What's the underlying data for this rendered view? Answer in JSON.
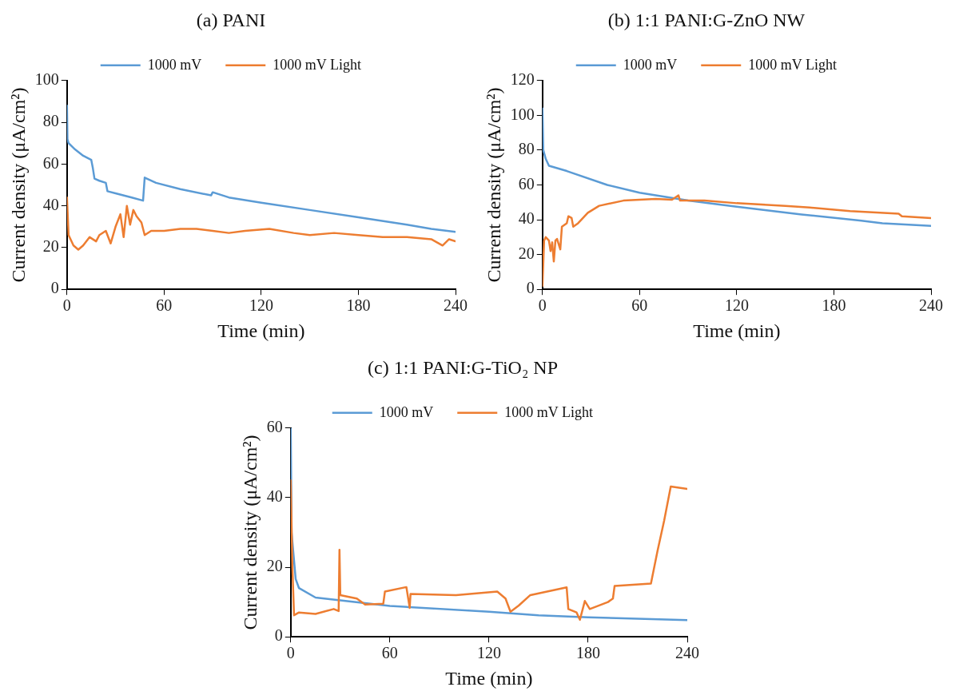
{
  "chart_data": [
    {
      "type": "line",
      "title": "(a) PANI",
      "xlabel": "Time (min)",
      "ylabel": "Current density (μA/cm²)",
      "xlim": [
        0,
        240
      ],
      "xticks": [
        0,
        60,
        120,
        180,
        240
      ],
      "ylim": [
        0,
        100
      ],
      "yticks": [
        0,
        20,
        40,
        60,
        80,
        100
      ],
      "grid": false,
      "legend": "top",
      "marker": "none",
      "line_style": "solid",
      "series": [
        {
          "name": "1000 mV",
          "color": "#5b9bd5",
          "x": [
            0,
            0.3,
            1,
            5,
            10,
            15,
            16,
            17,
            20,
            24,
            25,
            30,
            40,
            47,
            48,
            55,
            70,
            89,
            90,
            100,
            120,
            150,
            180,
            210,
            225,
            240
          ],
          "values": [
            88,
            72,
            70,
            67,
            64,
            62,
            58,
            53,
            52,
            51,
            47,
            46,
            44,
            42.5,
            53.5,
            51,
            48,
            45,
            46.5,
            44,
            41.5,
            38,
            34.5,
            31,
            29,
            27.5
          ]
        },
        {
          "name": "1000 mV Light",
          "color": "#ed7d31",
          "x": [
            0,
            1,
            4,
            7,
            10,
            14,
            18,
            20,
            24,
            27,
            30,
            33,
            35,
            37,
            39,
            41,
            43,
            46,
            48,
            52,
            60,
            70,
            80,
            90,
            100,
            110,
            125,
            140,
            150,
            165,
            180,
            195,
            210,
            225,
            232,
            236,
            240
          ],
          "values": [
            44,
            26,
            21,
            19,
            21,
            25,
            23,
            26,
            28,
            22,
            30,
            36,
            25,
            40,
            31,
            38,
            35,
            32,
            26,
            28,
            28,
            29,
            29,
            28,
            27,
            28,
            29,
            27,
            26,
            27,
            26,
            25,
            25,
            24,
            21,
            24,
            23
          ]
        }
      ]
    },
    {
      "type": "line",
      "title": "(b) 1:1 PANI:G-ZnO NW",
      "xlabel": "Time (min)",
      "ylabel": "Current density (μA/cm²)",
      "xlim": [
        0,
        240
      ],
      "xticks": [
        0,
        60,
        120,
        180,
        240
      ],
      "ylim": [
        0,
        120
      ],
      "yticks": [
        0,
        20,
        40,
        60,
        80,
        100,
        120
      ],
      "grid": false,
      "legend": "top",
      "marker": "none",
      "line_style": "solid",
      "series": [
        {
          "name": "1000 mV",
          "color": "#5b9bd5",
          "x": [
            0,
            0.5,
            2,
            4,
            15,
            40,
            60,
            90,
            120,
            160,
            197,
            210,
            240
          ],
          "values": [
            104,
            80,
            75,
            71,
            68,
            60,
            55.5,
            51,
            47.5,
            43,
            39.5,
            38,
            36.5
          ]
        },
        {
          "name": "1000 mV Light",
          "color": "#ed7d31",
          "x": [
            0,
            1,
            2,
            4,
            5,
            6,
            7,
            8,
            9,
            11,
            12,
            15,
            16,
            18,
            19,
            22,
            28,
            35,
            50,
            70,
            80,
            84,
            85,
            100,
            120,
            150,
            165,
            190,
            220,
            222,
            240
          ],
          "values": [
            2,
            28,
            30,
            28,
            22,
            27,
            16,
            28,
            29,
            23,
            36,
            38,
            42,
            41,
            36,
            38,
            44,
            48,
            51,
            52,
            51.5,
            54,
            51,
            51,
            49.5,
            48,
            47,
            45,
            43.5,
            42,
            41
          ]
        }
      ]
    },
    {
      "type": "line",
      "title": "(c) 1:1 PANI:G-TiO₂ NP",
      "xlabel": "Time (min)",
      "ylabel": "Current density (μA/cm²)",
      "xlim": [
        0,
        240
      ],
      "xticks": [
        0,
        60,
        120,
        180,
        240
      ],
      "ylim": [
        0,
        60
      ],
      "yticks": [
        0,
        20,
        40,
        60
      ],
      "grid": false,
      "legend": "top",
      "marker": "none",
      "line_style": "solid",
      "series": [
        {
          "name": "1000 mV",
          "color": "#5b9bd5",
          "x": [
            0,
            0.5,
            3,
            5,
            15,
            30,
            60,
            120,
            150,
            180,
            240
          ],
          "values": [
            60,
            30,
            16.6,
            14,
            11.3,
            10.5,
            8.9,
            7.2,
            6.2,
            5.6,
            4.8
          ]
        },
        {
          "name": "1000 mV Light",
          "color": "#ed7d31",
          "x": [
            0,
            1,
            2,
            5,
            15,
            26,
            29,
            29.5,
            30,
            40,
            45,
            56,
            57,
            70,
            72,
            72.5,
            100,
            125,
            130,
            133,
            138,
            145,
            167,
            168,
            173,
            175,
            178,
            181,
            192,
            195,
            196,
            218,
            220,
            222,
            226,
            230,
            240
          ],
          "values": [
            45,
            20,
            6.2,
            7,
            6.6,
            8,
            7.4,
            25,
            12,
            11,
            9.3,
            9.5,
            13,
            14.3,
            8.3,
            12.3,
            12,
            13,
            11,
            7.2,
            9,
            12,
            14.2,
            8,
            7,
            4.9,
            10.3,
            8,
            10,
            11,
            14.6,
            15.3,
            20,
            24.7,
            33.4,
            43.2,
            42.5
          ]
        }
      ]
    }
  ]
}
